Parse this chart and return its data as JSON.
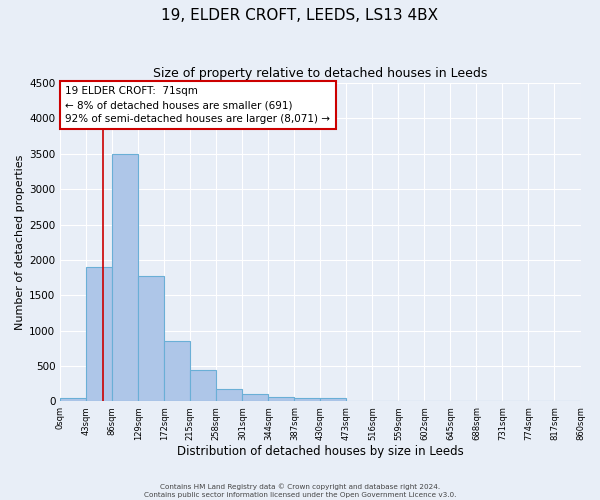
{
  "title": "19, ELDER CROFT, LEEDS, LS13 4BX",
  "subtitle": "Size of property relative to detached houses in Leeds",
  "xlabel": "Distribution of detached houses by size in Leeds",
  "ylabel": "Number of detached properties",
  "bin_edges": [
    0,
    43,
    86,
    129,
    172,
    215,
    258,
    301,
    344,
    387,
    430,
    473,
    516,
    559,
    602,
    645,
    688,
    731,
    774,
    817,
    860
  ],
  "bar_heights": [
    50,
    1900,
    3500,
    1780,
    850,
    450,
    175,
    100,
    70,
    50,
    50,
    0,
    0,
    0,
    0,
    0,
    0,
    0,
    0,
    0
  ],
  "tick_labels": [
    "0sqm",
    "43sqm",
    "86sqm",
    "129sqm",
    "172sqm",
    "215sqm",
    "258sqm",
    "301sqm",
    "344sqm",
    "387sqm",
    "430sqm",
    "473sqm",
    "516sqm",
    "559sqm",
    "602sqm",
    "645sqm",
    "688sqm",
    "731sqm",
    "774sqm",
    "817sqm",
    "860sqm"
  ],
  "ylim": [
    0,
    4500
  ],
  "yticks": [
    0,
    500,
    1000,
    1500,
    2000,
    2500,
    3000,
    3500,
    4000,
    4500
  ],
  "bar_color": "#aec6e8",
  "bar_edge_color": "#6aafd6",
  "bar_linewidth": 0.8,
  "vline_x": 71,
  "vline_color": "#cc0000",
  "annotation_text": "19 ELDER CROFT:  71sqm\n← 8% of detached houses are smaller (691)\n92% of semi-detached houses are larger (8,071) →",
  "annotation_box_color": "#ffffff",
  "annotation_box_edgecolor": "#cc0000",
  "bg_color": "#e8eef7",
  "grid_color": "#ffffff",
  "footer_line1": "Contains HM Land Registry data © Crown copyright and database right 2024.",
  "footer_line2": "Contains public sector information licensed under the Open Government Licence v3.0.",
  "title_fontsize": 11,
  "subtitle_fontsize": 9,
  "xlabel_fontsize": 8.5,
  "ylabel_fontsize": 8
}
